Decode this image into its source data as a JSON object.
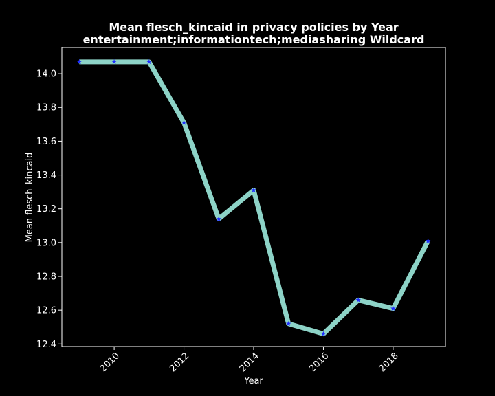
{
  "chart_data": {
    "type": "line",
    "title": "Mean flesch_kincaid in privacy policies by Year",
    "subtitle": "entertainment;informationtech;mediasharing Wildcard",
    "xlabel": "Year",
    "ylabel": "Mean flesch_kincaid",
    "x": [
      2009,
      2010,
      2011,
      2012,
      2013,
      2014,
      2015,
      2016,
      2017,
      2018,
      2019
    ],
    "values": [
      14.07,
      14.07,
      14.07,
      13.71,
      13.14,
      13.31,
      12.52,
      12.46,
      12.66,
      12.61,
      13.01
    ],
    "xlim": [
      2008.5,
      2019.5
    ],
    "ylim": [
      12.385,
      14.155
    ],
    "xticks": [
      2010,
      2012,
      2014,
      2016,
      2018
    ],
    "yticks": [
      "12.4",
      "12.6",
      "12.8",
      "13.0",
      "13.2",
      "13.4",
      "13.6",
      "13.8",
      "14.0"
    ],
    "grid": false,
    "line_color": "#8dd3c7",
    "marker_color": "#1f2fff",
    "marker": "star",
    "background": "#000000"
  }
}
